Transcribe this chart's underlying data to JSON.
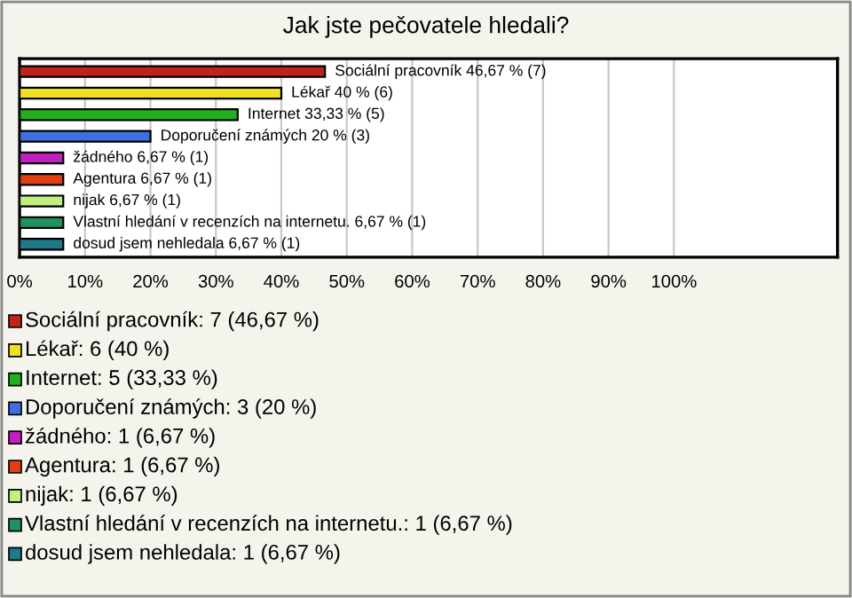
{
  "chart_data": {
    "type": "bar",
    "orientation": "horizontal",
    "title": "Jak jste pečovatele hledali?",
    "categories": [
      null,
      null,
      null,
      null,
      null,
      null,
      null,
      null,
      null
    ],
    "values": [
      46.67,
      40,
      33.33,
      20,
      6.67,
      6.67,
      6.67,
      6.67,
      6.67
    ],
    "colors": [
      "#c02418",
      "#f0e020",
      "#20b020",
      "#4070e0",
      "#c020c0",
      "#e04010",
      "#c0f080",
      "#209060",
      "#207888"
    ],
    "value_labels": [
      "Sociální pracovník 46,67 % (7)",
      "Lékař 40 % (6)",
      "Internet 33,33 % (5)",
      "Doporučení známých 20 % (3)",
      "žádného 6,67 % (1)",
      "Agentura 6,67 % (1)",
      "nijak 6,67 % (1)",
      "Vlastní hledání v recenzích na internetu. 6,67 % (1)",
      "dosud jsem nehledala 6,67 % (1)"
    ],
    "xlim": [
      0,
      125
    ],
    "xticks": [
      {
        "value": 0,
        "label": "0%"
      },
      {
        "value": 10,
        "label": "10%"
      },
      {
        "value": 20,
        "label": "20%"
      },
      {
        "value": 30,
        "label": "30%"
      },
      {
        "value": 40,
        "label": "40%"
      },
      {
        "value": 50,
        "label": "50%"
      },
      {
        "value": 60,
        "label": "60%"
      },
      {
        "value": 70,
        "label": "70%"
      },
      {
        "value": 80,
        "label": "80%"
      },
      {
        "value": 90,
        "label": "90%"
      },
      {
        "value": 100,
        "label": "100%"
      }
    ],
    "grid": "x",
    "tick_labels": "x",
    "annotations": [
      "Sociální pracovník: 7 (46,67 %)",
      "Lékař: 6 (40 %)",
      "Internet: 5 (33,33 %)",
      "Doporučení známých: 3 (20 %)",
      "žádného: 1 (6,67 %)",
      "Agentura: 1 (6,67 %)",
      "nijak: 1 (6,67 %)",
      "Vlastní hledání v recenzích na internetu.: 1 (6,67 %)",
      "dosud jsem nehledala: 1 (6,67 %)"
    ]
  }
}
